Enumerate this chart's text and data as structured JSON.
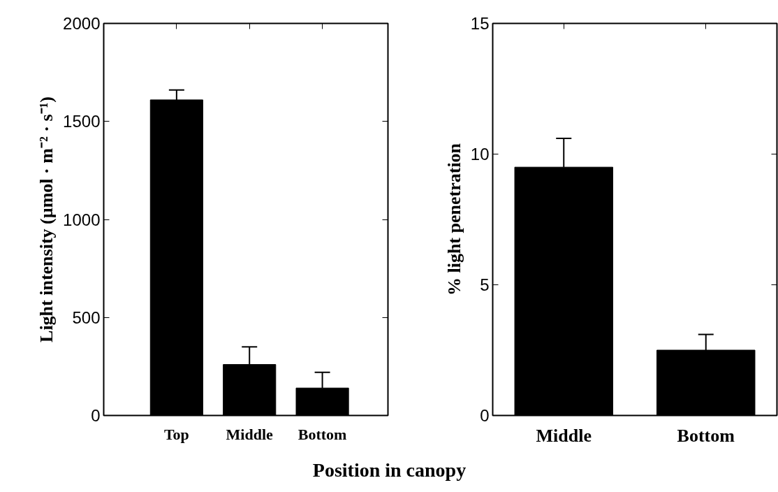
{
  "chart_data": [
    {
      "type": "bar",
      "xlabel": "Position in canopy",
      "ylabel": "Light intensity (µmol · m⁻² · s⁻¹)",
      "categories": [
        "Top",
        "Middle",
        "Bottom"
      ],
      "series": [
        {
          "color": "#000000",
          "values": [
            1610,
            260,
            140
          ],
          "errors": [
            [
              1610,
              1660
            ],
            [
              260,
              350
            ],
            [
              140,
              220
            ]
          ]
        }
      ],
      "ylim": [
        0,
        2000
      ],
      "yticks": [
        0,
        500,
        1000,
        1500,
        2000
      ],
      "grid": false
    },
    {
      "type": "bar",
      "ylabel": "% light penetration",
      "categories": [
        "Middle",
        "Bottom"
      ],
      "series": [
        {
          "color": "#000000",
          "values": [
            9.5,
            2.5
          ],
          "errors": [
            [
              9.5,
              10.6
            ],
            [
              2.5,
              3.1
            ]
          ]
        }
      ],
      "ylim": [
        0,
        15
      ],
      "yticks": [
        0,
        5,
        10,
        15
      ],
      "grid": false
    }
  ]
}
